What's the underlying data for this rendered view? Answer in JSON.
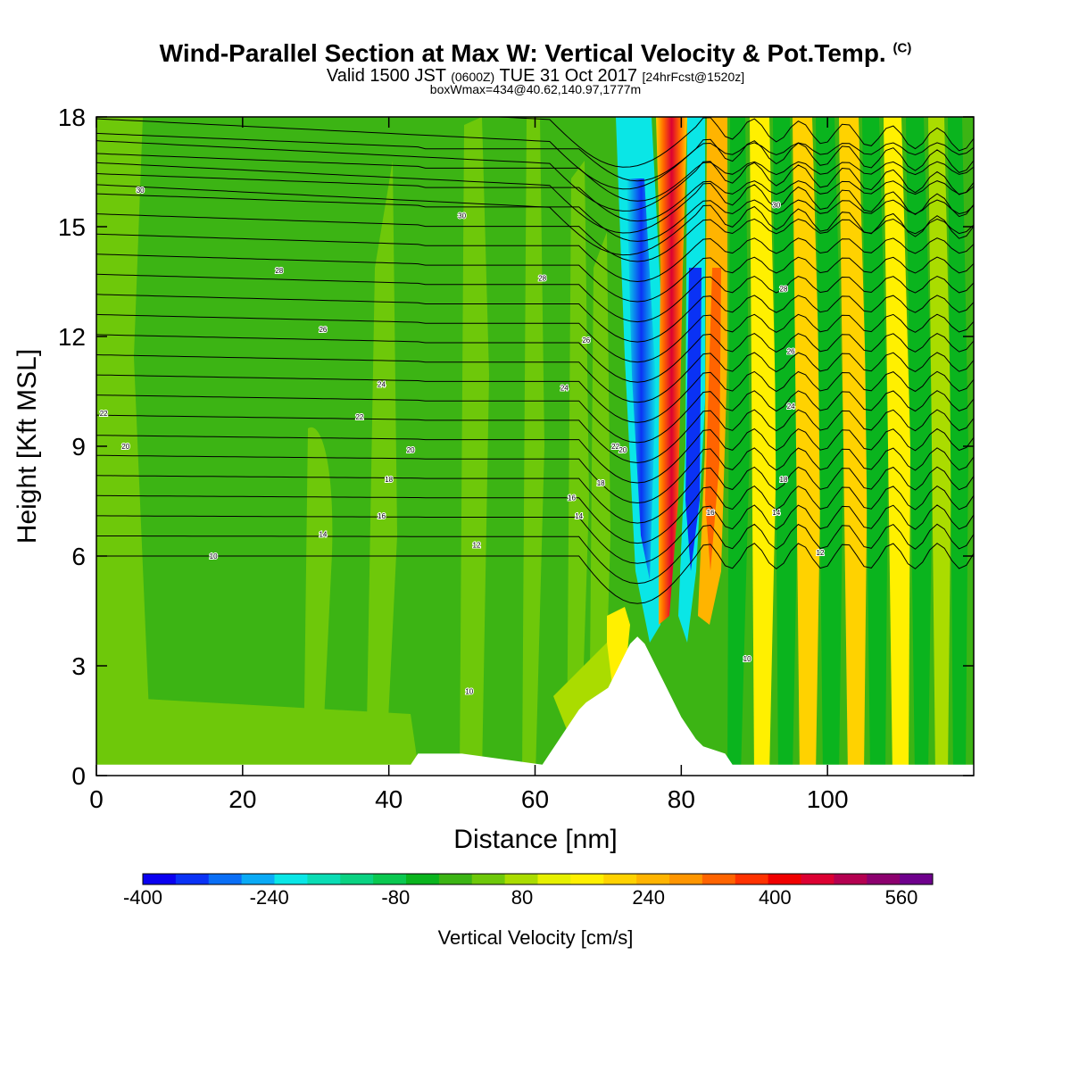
{
  "title": {
    "main": "Wind-Parallel Section at Max W: Vertical Velocity & Pot.Temp.",
    "copyright": "(C)",
    "valid_prefix": "Valid 1500 JST",
    "valid_utc": "(0600Z)",
    "valid_date": "TUE 31 Oct 2017",
    "forecast": "[24hrFcst@1520z]",
    "box_info": "boxWmax=434@40.62,140.97,1777m"
  },
  "chart_data": {
    "type": "heatmap",
    "xlabel": "Distance [nm]",
    "ylabel": "Height [Kft MSL]",
    "xlim": [
      0,
      120
    ],
    "ylim": [
      0,
      18
    ],
    "x_ticks": [
      "0",
      "20",
      "40",
      "60",
      "80",
      "100"
    ],
    "y_ticks": [
      "0",
      "3",
      "6",
      "9",
      "12",
      "15",
      "18"
    ],
    "colorbar": {
      "label": "Vertical Velocity [cm/s]",
      "tick_labels": [
        "-400",
        "-240",
        "-80",
        "80",
        "240",
        "400",
        "560"
      ],
      "colors": [
        "#0a00f0",
        "#0a32f5",
        "#0a6ef5",
        "#0aaaf5",
        "#0ae6e6",
        "#0adcb4",
        "#0ad282",
        "#0ac850",
        "#0ab41e",
        "#3cb414",
        "#6ec80a",
        "#aadc00",
        "#e6f000",
        "#fff000",
        "#ffd200",
        "#ffb400",
        "#ff9600",
        "#ff6400",
        "#ff3200",
        "#f00000",
        "#dc0032",
        "#b40050",
        "#8c006e",
        "#6e008c"
      ]
    },
    "fields": [
      "vertical velocity (shaded)",
      "potential temperature (contours)"
    ],
    "notes": "Strong updraft/downdraft couplet near 75-80 nm with lee-wave train downstream; terrain peak near 74 nm at about 3.8 Kft.",
    "terrain": {
      "x": [
        0,
        43,
        44,
        50,
        61,
        62,
        63,
        64,
        65,
        66,
        67,
        70,
        71,
        72,
        73,
        74,
        75,
        76,
        77,
        78,
        79,
        80,
        81,
        82,
        83,
        86,
        87,
        120
      ],
      "y": [
        0.3,
        0.3,
        0.6,
        0.6,
        0.3,
        0.6,
        0.9,
        1.2,
        1.5,
        1.8,
        2.0,
        2.4,
        2.8,
        3.2,
        3.6,
        3.8,
        3.6,
        3.2,
        2.8,
        2.4,
        2.0,
        1.6,
        1.3,
        1.0,
        0.8,
        0.6,
        0.3,
        0.3
      ]
    },
    "contour_labels": [
      {
        "text": "30",
        "x": 6,
        "y": 16
      },
      {
        "text": "30",
        "x": 50,
        "y": 15.3
      },
      {
        "text": "30",
        "x": 93,
        "y": 15.6
      },
      {
        "text": "28",
        "x": 25,
        "y": 13.8
      },
      {
        "text": "28",
        "x": 61,
        "y": 13.6
      },
      {
        "text": "28",
        "x": 94,
        "y": 13.3
      },
      {
        "text": "26",
        "x": 31,
        "y": 12.2
      },
      {
        "text": "26",
        "x": 67,
        "y": 11.9
      },
      {
        "text": "26",
        "x": 95,
        "y": 11.6
      },
      {
        "text": "24",
        "x": 39,
        "y": 10.7
      },
      {
        "text": "24",
        "x": 64,
        "y": 10.6
      },
      {
        "text": "24",
        "x": 95,
        "y": 10.1
      },
      {
        "text": "22",
        "x": 1,
        "y": 9.9
      },
      {
        "text": "22",
        "x": 36,
        "y": 9.8
      },
      {
        "text": "22",
        "x": 71,
        "y": 9.0
      },
      {
        "text": "20",
        "x": 4,
        "y": 9.0
      },
      {
        "text": "20",
        "x": 43,
        "y": 8.9
      },
      {
        "text": "20",
        "x": 72,
        "y": 8.9
      },
      {
        "text": "18",
        "x": 40,
        "y": 8.1
      },
      {
        "text": "18",
        "x": 69,
        "y": 8.0
      },
      {
        "text": "18",
        "x": 94,
        "y": 8.1
      },
      {
        "text": "16",
        "x": 39,
        "y": 7.1
      },
      {
        "text": "16",
        "x": 65,
        "y": 7.6
      },
      {
        "text": "16",
        "x": 84,
        "y": 7.2
      },
      {
        "text": "14",
        "x": 31,
        "y": 6.6
      },
      {
        "text": "14",
        "x": 66,
        "y": 7.1
      },
      {
        "text": "14",
        "x": 93,
        "y": 7.2
      },
      {
        "text": "12",
        "x": 52,
        "y": 6.3
      },
      {
        "text": "12",
        "x": 99,
        "y": 6.1
      },
      {
        "text": "10",
        "x": 16,
        "y": 6.0
      },
      {
        "text": "10",
        "x": 89,
        "y": 3.2
      },
      {
        "text": "10",
        "x": 51,
        "y": 2.3
      }
    ]
  }
}
